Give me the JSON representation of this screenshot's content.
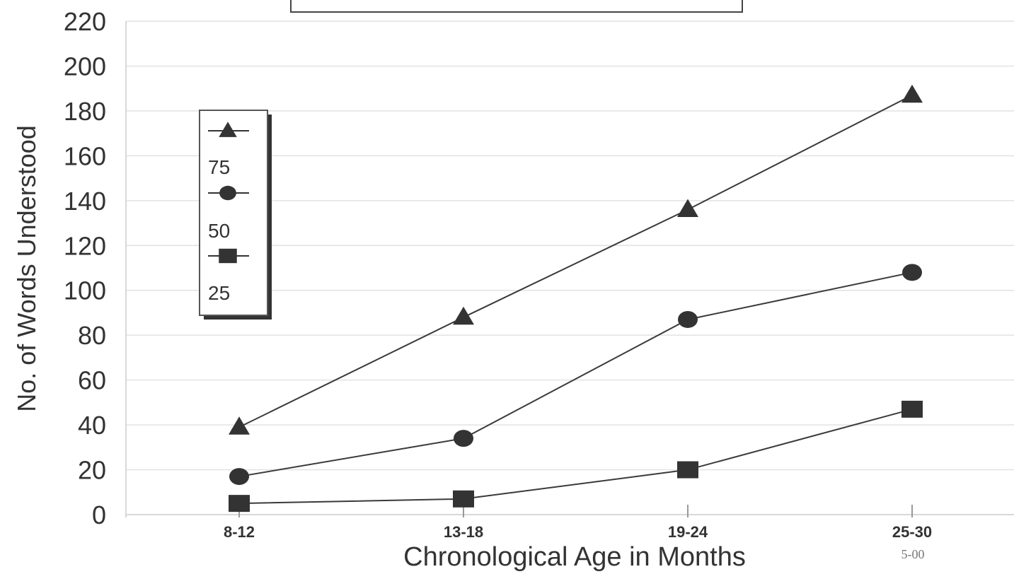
{
  "chart_data": {
    "type": "line",
    "title": "",
    "xlabel": "Chronological Age in Months",
    "ylabel": "No. of Words Understood",
    "categories": [
      "8-12",
      "13-18",
      "19-24",
      "25-30"
    ],
    "ylim": [
      0,
      220
    ],
    "yticks": [
      "0",
      "20",
      "40",
      "60",
      "80",
      "100",
      "120",
      "140",
      "160",
      "180",
      "200",
      "220"
    ],
    "grid": true,
    "legend": "upper-left",
    "series": [
      {
        "name": "75",
        "marker": "triangle",
        "values": [
          39,
          88,
          136,
          187
        ]
      },
      {
        "name": "50",
        "marker": "circle",
        "values": [
          17,
          34,
          87,
          108
        ]
      },
      {
        "name": "25",
        "marker": "square",
        "values": [
          5,
          7,
          20,
          47
        ]
      }
    ],
    "annotation": "5-00"
  }
}
